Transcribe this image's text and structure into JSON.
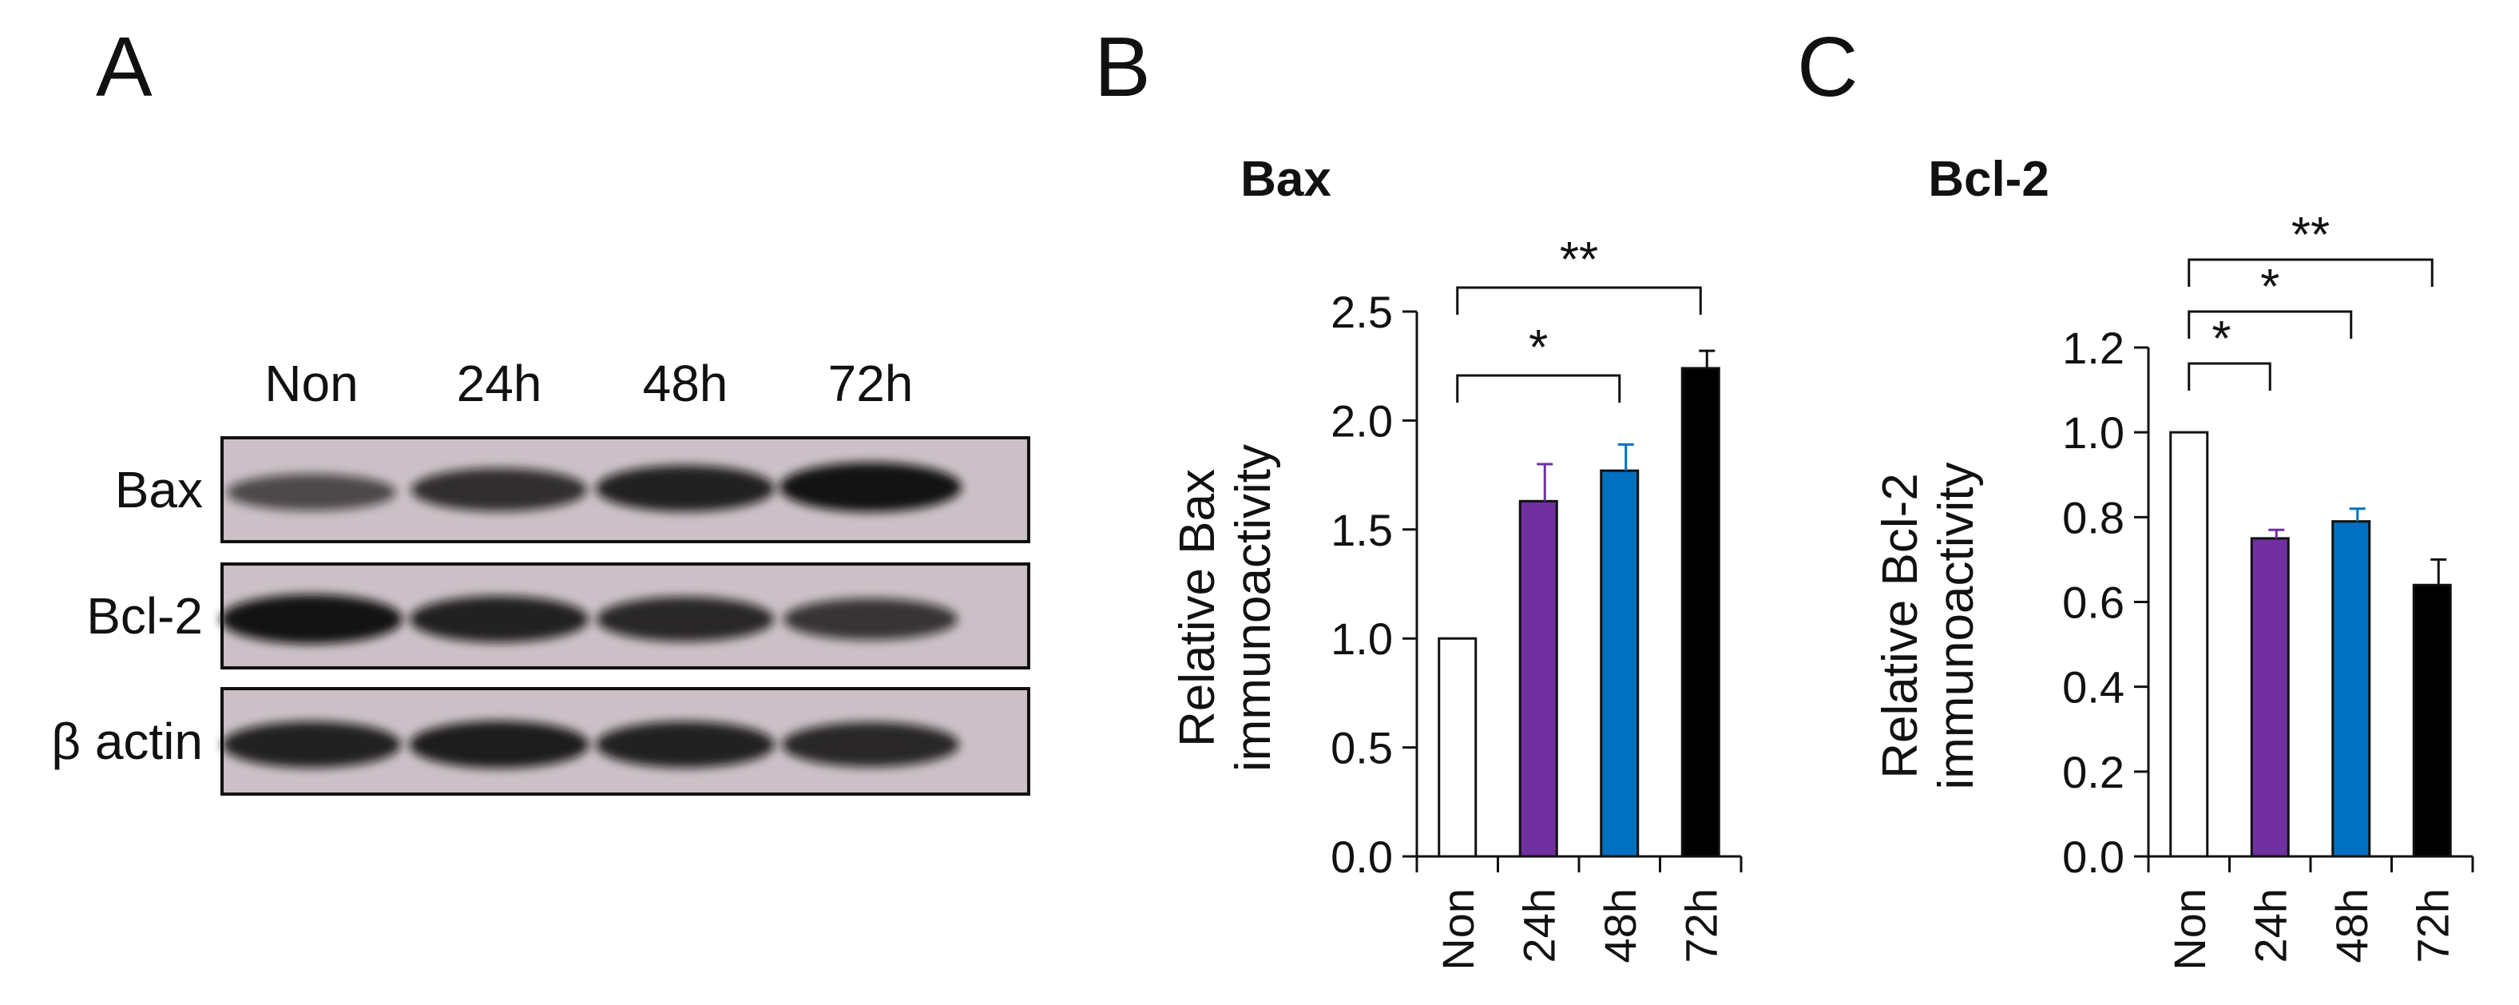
{
  "panel_letters": [
    "A",
    "B",
    "C"
  ],
  "blot": {
    "lanes": [
      "Non",
      "24h",
      "48h",
      "72h"
    ],
    "rows": [
      {
        "label": "Bax",
        "band_intensity": [
          0.55,
          0.75,
          0.85,
          0.95
        ]
      },
      {
        "label": "Bcl-2",
        "band_intensity": [
          0.95,
          0.85,
          0.8,
          0.7
        ]
      },
      {
        "label": "β actin",
        "band_intensity": [
          0.85,
          0.88,
          0.85,
          0.8
        ]
      }
    ],
    "membrane_color": "#cbc0c6",
    "band_color": "#111111"
  },
  "chart_data": [
    {
      "type": "bar",
      "title": "Bax",
      "ylabel": [
        "Relative Bax",
        "immunoactivity"
      ],
      "xlabel": "",
      "categories": [
        "Non",
        "24h",
        "48h",
        "72h"
      ],
      "values": [
        1.0,
        1.63,
        1.77,
        2.24
      ],
      "errors": [
        0,
        0.17,
        0.12,
        0.08
      ],
      "ylim": [
        0,
        2.5
      ],
      "yticks": [
        "0.0",
        "0.5",
        "1.0",
        "1.5",
        "2.0",
        "2.5"
      ],
      "colors": [
        "#ffffff",
        "#7030a0",
        "#0070c0",
        "#000000"
      ],
      "significance": [
        {
          "from": 0,
          "to": 2,
          "label": "*"
        },
        {
          "from": 0,
          "to": 3,
          "label": "**"
        }
      ],
      "grid": false
    },
    {
      "type": "bar",
      "title": "Bcl-2",
      "ylabel": [
        "Relative Bcl-2",
        "immunoactivity"
      ],
      "xlabel": "",
      "categories": [
        "Non",
        "24h",
        "48h",
        "72h"
      ],
      "values": [
        1.0,
        0.75,
        0.79,
        0.64
      ],
      "errors": [
        0,
        0.02,
        0.03,
        0.06
      ],
      "ylim": [
        0,
        1.2
      ],
      "yticks": [
        "0.0",
        "0.2",
        "0.4",
        "0.6",
        "0.8",
        "1.0",
        "1.2"
      ],
      "colors": [
        "#ffffff",
        "#7030a0",
        "#0070c0",
        "#000000"
      ],
      "significance": [
        {
          "from": 0,
          "to": 1,
          "label": "*"
        },
        {
          "from": 0,
          "to": 2,
          "label": "*"
        },
        {
          "from": 0,
          "to": 3,
          "label": "**"
        }
      ],
      "grid": false
    }
  ]
}
